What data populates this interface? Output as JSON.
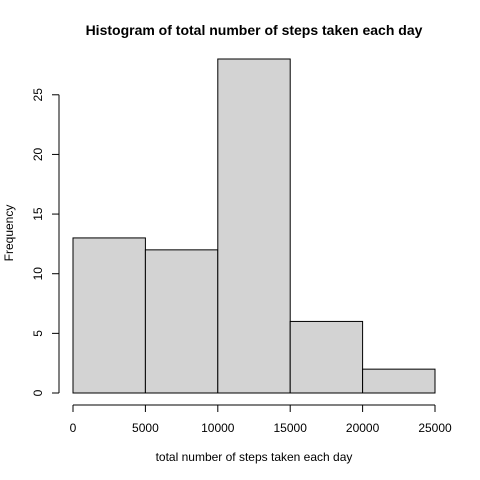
{
  "chart_data": {
    "type": "bar",
    "subtype": "histogram",
    "title": "Histogram of total number of steps taken each day",
    "xlabel": "total number of steps taken each day",
    "ylabel": "Frequency",
    "bins": [
      {
        "from": 0,
        "to": 5000,
        "count": 13
      },
      {
        "from": 5000,
        "to": 10000,
        "count": 12
      },
      {
        "from": 10000,
        "to": 15000,
        "count": 28
      },
      {
        "from": 15000,
        "to": 20000,
        "count": 6
      },
      {
        "from": 20000,
        "to": 25000,
        "count": 2
      }
    ],
    "xlim": [
      0,
      25000
    ],
    "ylim": [
      0,
      28
    ],
    "xticks": [
      0,
      5000,
      10000,
      15000,
      20000,
      25000
    ],
    "yticks": [
      0,
      5,
      10,
      15,
      20,
      25
    ],
    "grid": false,
    "colors": {
      "bar_fill": "#d3d3d3",
      "bar_stroke": "#000000",
      "axis": "#000000",
      "background": "#ffffff"
    }
  }
}
